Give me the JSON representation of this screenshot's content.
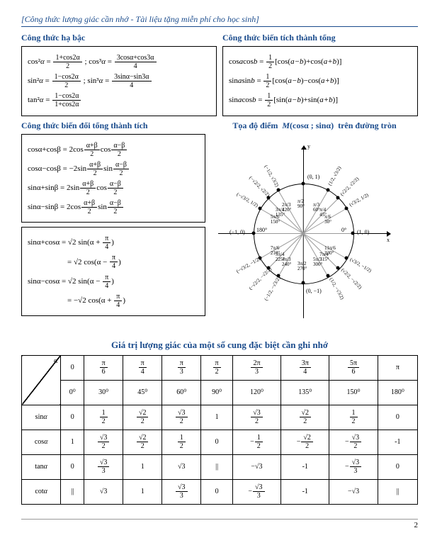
{
  "header": "[Công thức lượng giác cần nhớ - Tài liệu tặng miễn phí cho học sinh]",
  "sections": {
    "habac": {
      "title": "Công thức hạ bậc",
      "lines": [
        "cos²α = (1+cos2α)/2 ; cos³α = (3cosα+cos3α)/4",
        "sin²α = (1−cos2α)/2 ; sin³α = (3sinα−sin3α)/4",
        "tan²α = (1−cos2α)/(1+cos2α)"
      ]
    },
    "tichtong": {
      "title": "Công thức biến tích thành tổng",
      "lines": [
        "cos a cos b = ½[cos(a−b)+cos(a+b)]",
        "sin a sin b = ½[cos(a−b)−cos(a+b)]",
        "sin a cos b = ½[sin(a−b)+sin(a+b)]"
      ]
    },
    "tongtich": {
      "title": "Công thức biến đổi tổng thành tích",
      "lines": [
        "cosα+cosβ = 2cos((α+β)/2)cos((α−β)/2)",
        "cosα−cosβ = −2sin((α+β)/2)sin((α−β)/2)",
        "sinα+sinβ = 2sin((α+β)/2)cos((α−β)/2)",
        "sinα−sinβ = 2cos((α+β)/2)sin((α−β)/2)"
      ]
    },
    "extra": {
      "lines": [
        "sinα+cosα = √2 sin(α+π/4)",
        "          = √2 cos(α−π/4)",
        "sinα−cosα = √2 sin(α−π/4)",
        "          = −√2 cos(α+π/4)"
      ]
    },
    "circle_title": "Tọa độ điểm  M(cosα ; sinα)  trên đường tròn",
    "table_title": "Giá trị lượng giác của một số cung đặc biệt cần ghi nhớ"
  },
  "circle": {
    "axis_labels": {
      "x": "x",
      "y": "y"
    },
    "cardinal": {
      "right": "(1, 0)",
      "left": "(−1, 0)",
      "top": "(0, 1)",
      "bottom": "(0, −1)",
      "zero": "0°",
      "pi": "180°"
    },
    "angles_deg": [
      30,
      45,
      60,
      90,
      120,
      135,
      150,
      180,
      210,
      225,
      240,
      270,
      300,
      315,
      330
    ],
    "inner_labels": [
      "π/6",
      "π/4",
      "π/3",
      "π/2",
      "2π/3",
      "3π/4",
      "5π/6",
      "7π/6",
      "5π/4",
      "4π/3",
      "3π/2",
      "5π/3",
      "7π/4",
      "11π/6"
    ],
    "inner_deg": [
      "30°",
      "45°",
      "60°",
      "90°",
      "120°",
      "135°",
      "150°",
      "210°",
      "225°",
      "240°",
      "270°",
      "300°",
      "315°",
      "330°"
    ],
    "outer_points": [
      "(√3/2, 1/2)",
      "(√2/2, √2/2)",
      "(1/2, √3/2)",
      "(−1/2, √3/2)",
      "(−√2/2, √2/2)",
      "(−√3/2, 1/2)",
      "(−√3/2, −1/2)",
      "(−√2/2, −√2/2)",
      "(−1/2, −√3/2)",
      "(1/2, −√3/2)",
      "(√2/2, −√2/2)",
      "(√3/2, −1/2)"
    ],
    "colors": {
      "circle": "#000000",
      "grid": "#999999",
      "background": "#ffffff"
    }
  },
  "table": {
    "header_label": "α",
    "columns": [
      "0",
      "π/6",
      "π/4",
      "π/3",
      "π/2",
      "2π/3",
      "3π/4",
      "5π/6",
      "π"
    ],
    "degrees": [
      "0⁰",
      "30⁰",
      "45⁰",
      "60⁰",
      "90⁰",
      "120⁰",
      "135⁰",
      "150⁰",
      "180⁰"
    ],
    "rows": [
      {
        "label": "sinα",
        "vals": [
          "0",
          "1/2",
          "√2/2",
          "√3/2",
          "1",
          "√3/2",
          "√2/2",
          "1/2",
          "0"
        ]
      },
      {
        "label": "cosα",
        "vals": [
          "1",
          "√3/2",
          "√2/2",
          "1/2",
          "0",
          "−1/2",
          "−√2/2",
          "−√3/2",
          "-1"
        ]
      },
      {
        "label": "tanα",
        "vals": [
          "0",
          "√3/3",
          "1",
          "√3",
          "||",
          "−√3",
          "-1",
          "−√3/3",
          "0"
        ]
      },
      {
        "label": "cotα",
        "vals": [
          "||",
          "√3",
          "1",
          "√3/3",
          "0",
          "−√3/3",
          "-1",
          "−√3",
          "||"
        ]
      }
    ]
  },
  "page_number": "2"
}
